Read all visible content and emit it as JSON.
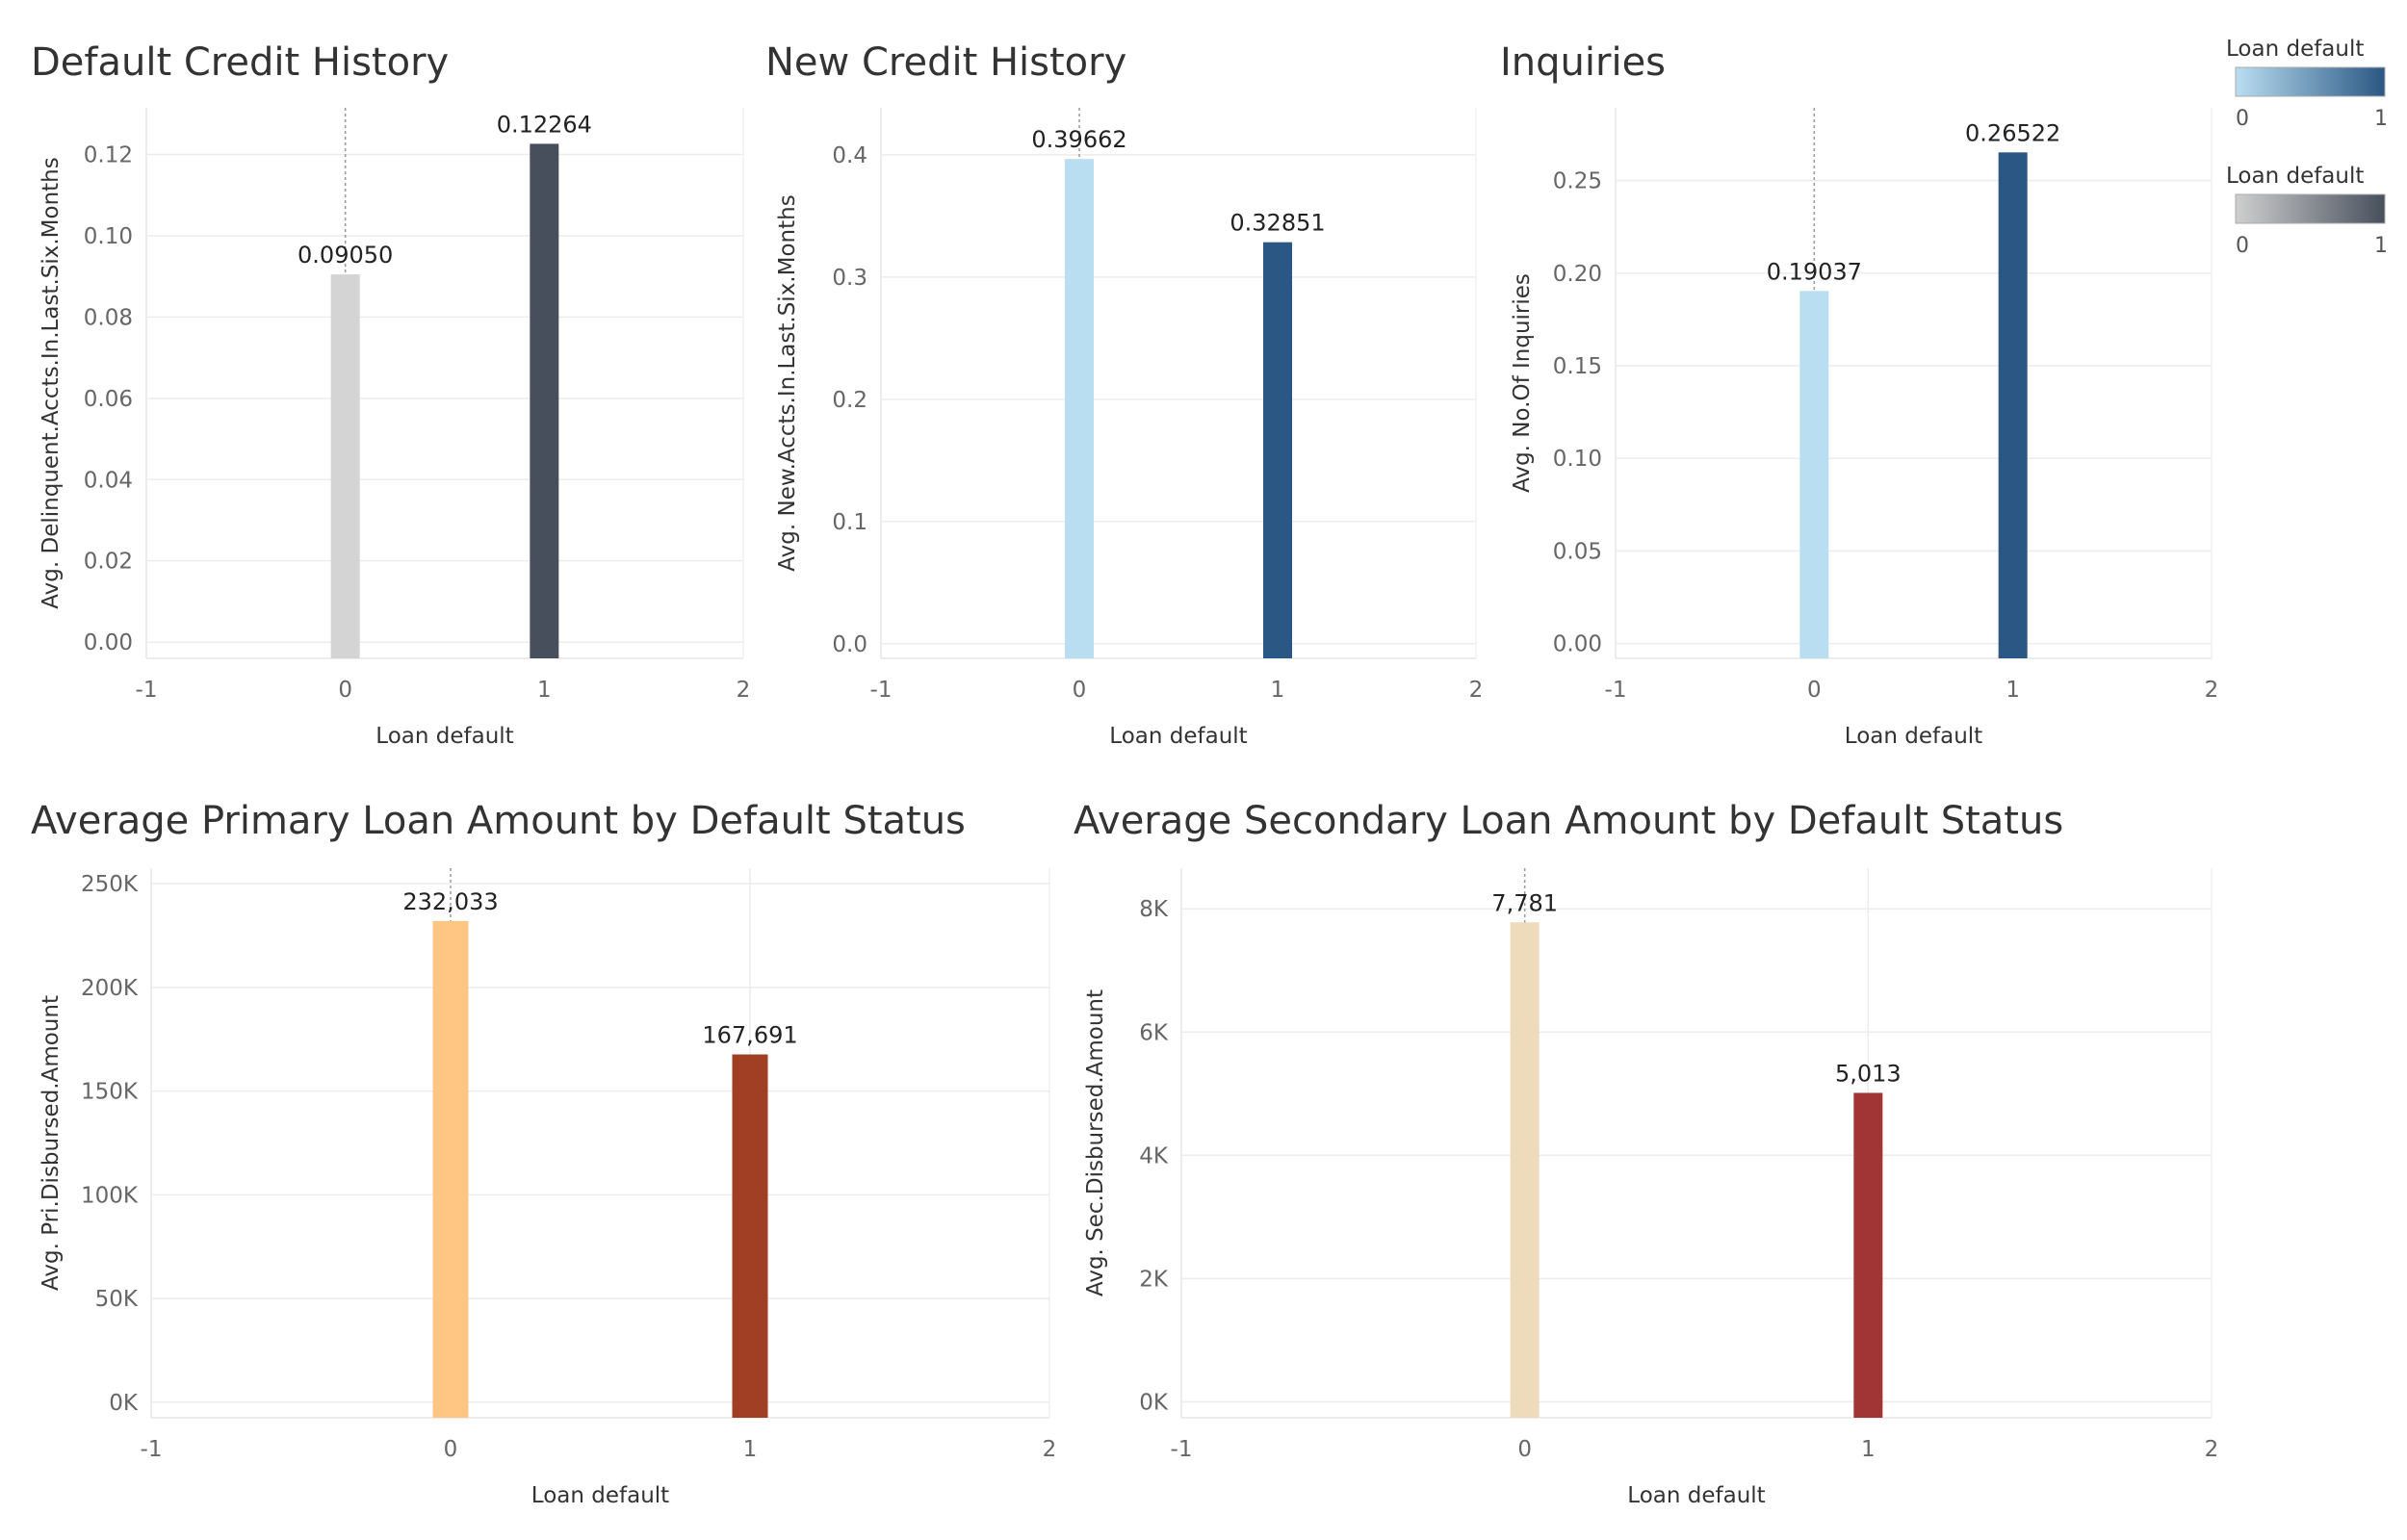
{
  "legends": [
    {
      "title": "Loan default",
      "min_label": "0",
      "max_label": "1",
      "color_start": "#b9ddf1",
      "color_end": "#2a5783"
    },
    {
      "title": "Loan default",
      "min_label": "0",
      "max_label": "1",
      "color_start": "#cfcfcf",
      "color_end": "#474f5c"
    }
  ],
  "chart_data": [
    {
      "type": "bar",
      "title": "Default Credit History",
      "xlabel": "Loan default",
      "ylabel": "Avg. Delinquent.Accts.In.Last.Six.Months",
      "x": [
        0,
        1
      ],
      "values": [
        0.0905,
        0.12264
      ],
      "value_labels": [
        "0.09050",
        "0.12264"
      ],
      "colors": [
        "#d4d4d4",
        "#474f5c"
      ],
      "xlim": [
        -1,
        2
      ],
      "x_ticks": [
        "-1",
        "0",
        "1",
        "2"
      ],
      "ylim": [
        -0.004,
        0.1315
      ],
      "y_ticks": [
        0,
        0.02,
        0.04,
        0.06,
        0.08,
        0.1,
        0.12
      ],
      "y_tick_labels": [
        "0.00",
        "0.02",
        "0.04",
        "0.06",
        "0.08",
        "0.10",
        "0.12"
      ],
      "grid": true,
      "reference_line_x": 0
    },
    {
      "type": "bar",
      "title": "New Credit History",
      "xlabel": "Loan default",
      "ylabel": "Avg. New.Accts.In.Last.Six.Months",
      "x": [
        0,
        1
      ],
      "values": [
        0.39662,
        0.32851
      ],
      "value_labels": [
        "0.39662",
        "0.32851"
      ],
      "colors": [
        "#b9ddf1",
        "#2a5783"
      ],
      "xlim": [
        -1,
        2
      ],
      "x_ticks": [
        "-1",
        "0",
        "1",
        "2"
      ],
      "ylim": [
        -0.012,
        0.4385
      ],
      "y_ticks": [
        0,
        0.1,
        0.2,
        0.3,
        0.4
      ],
      "y_tick_labels": [
        "0.0",
        "0.1",
        "0.2",
        "0.3",
        "0.4"
      ],
      "grid": true,
      "reference_line_x": 0
    },
    {
      "type": "bar",
      "title": "Inquiries",
      "xlabel": "Loan default",
      "ylabel": "Avg. No.Of Inquiries",
      "x": [
        0,
        1
      ],
      "values": [
        0.19037,
        0.26522
      ],
      "value_labels": [
        "0.19037",
        "0.26522"
      ],
      "colors": [
        "#b9ddf1",
        "#2a5783"
      ],
      "xlim": [
        -1,
        2
      ],
      "x_ticks": [
        "-1",
        "0",
        "1",
        "2"
      ],
      "ylim": [
        -0.008,
        0.2893
      ],
      "y_ticks": [
        0,
        0.05,
        0.1,
        0.15,
        0.2,
        0.25
      ],
      "y_tick_labels": [
        "0.00",
        "0.05",
        "0.10",
        "0.15",
        "0.20",
        "0.25"
      ],
      "grid": true,
      "reference_line_x": 0
    },
    {
      "type": "bar",
      "title": "Average Primary Loan Amount by Default Status",
      "xlabel": "Loan default",
      "ylabel": "Avg. Pri.Disbursed.Amount",
      "x": [
        0,
        1
      ],
      "values": [
        232033,
        167691
      ],
      "value_labels": [
        "232,033",
        "167,691"
      ],
      "colors": [
        "#fec682",
        "#a03f24"
      ],
      "xlim": [
        -1,
        2
      ],
      "x_ticks": [
        "-1",
        "0",
        "1",
        "2"
      ],
      "ylim": [
        -7500,
        257500
      ],
      "y_ticks": [
        0,
        50000,
        100000,
        150000,
        200000,
        250000
      ],
      "y_tick_labels": [
        "0K",
        "50K",
        "100K",
        "150K",
        "200K",
        "250K"
      ],
      "grid": true,
      "reference_line_x": 0
    },
    {
      "type": "bar",
      "title": "Average Secondary Loan Amount by Default Status",
      "xlabel": "Loan default",
      "ylabel": "Avg. Sec.Disbursed.Amount",
      "x": [
        0,
        1
      ],
      "values": [
        7781,
        5013
      ],
      "value_labels": [
        "7,781",
        "5,013"
      ],
      "colors": [
        "#eddbbb",
        "#a13535"
      ],
      "xlim": [
        -1,
        2
      ],
      "x_ticks": [
        "-1",
        "0",
        "1",
        "2"
      ],
      "ylim": [
        -260,
        8660
      ],
      "y_ticks": [
        0,
        2000,
        4000,
        6000,
        8000
      ],
      "y_tick_labels": [
        "0K",
        "2K",
        "4K",
        "6K",
        "8K"
      ],
      "grid": true,
      "reference_line_x": 0
    }
  ]
}
